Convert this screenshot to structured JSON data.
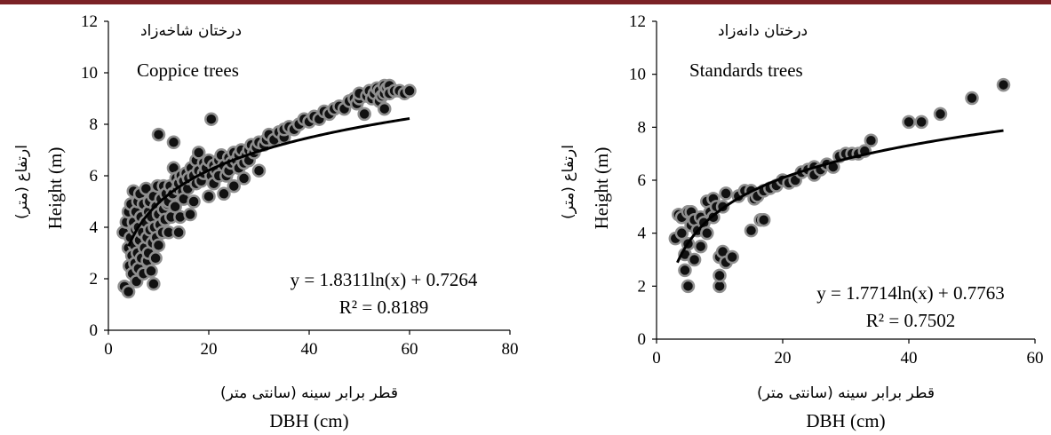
{
  "colors": {
    "top_bar": "#7b2226",
    "marker_fill": "#111111",
    "marker_edge": "#8f8f8f",
    "trend_line": "#000000"
  },
  "chart_data": [
    {
      "type": "scatter",
      "label_fa": "درختان شاخه‌زاد",
      "label_en": "Coppice  trees",
      "ylabel_fa": "ارتفاع (متر)",
      "ylabel_en": "Height (m)",
      "xlabel_fa": "قطر برابر سینه (سانتی متر)",
      "xlabel_en": "DBH (cm)",
      "xlim": [
        0,
        80
      ],
      "ylim": [
        0,
        12
      ],
      "xticks": [
        "0",
        "20",
        "40",
        "60",
        "80"
      ],
      "yticks": [
        "0",
        "2",
        "4",
        "6",
        "8",
        "10",
        "12"
      ],
      "trend": {
        "type": "logarithmic",
        "a": 1.8311,
        "b": 0.7264,
        "x_range": [
          4,
          60
        ]
      },
      "equation": "y = 1.8311ln(x) + 0.7264",
      "r2": "R² = 0.8189",
      "points": [
        [
          3,
          3.8
        ],
        [
          3.2,
          1.7
        ],
        [
          3.6,
          4.2
        ],
        [
          4,
          1.5
        ],
        [
          4,
          3.2
        ],
        [
          4,
          4.6
        ],
        [
          4.2,
          2.5
        ],
        [
          4.4,
          3.6
        ],
        [
          4.5,
          4.9
        ],
        [
          4.7,
          2.9
        ],
        [
          4.8,
          2.2
        ],
        [
          5,
          4.2
        ],
        [
          5,
          5.4
        ],
        [
          5.2,
          3.3
        ],
        [
          5.3,
          2.6
        ],
        [
          5.4,
          3.9
        ],
        [
          5.5,
          4.6
        ],
        [
          5.6,
          1.9
        ],
        [
          5.8,
          3.0
        ],
        [
          5.9,
          5.0
        ],
        [
          6,
          4.0
        ],
        [
          6,
          2.4
        ],
        [
          6.2,
          3.5
        ],
        [
          6.3,
          5.3
        ],
        [
          6.5,
          4.4
        ],
        [
          6.6,
          2.8
        ],
        [
          6.8,
          3.8
        ],
        [
          7,
          4.9
        ],
        [
          7,
          2.2
        ],
        [
          7.2,
          3.2
        ],
        [
          7.4,
          4.2
        ],
        [
          7.5,
          5.5
        ],
        [
          7.7,
          3.6
        ],
        [
          7.8,
          2.7
        ],
        [
          8,
          4.6
        ],
        [
          8,
          3.0
        ],
        [
          8.2,
          5.0
        ],
        [
          8.3,
          3.9
        ],
        [
          8.5,
          2.3
        ],
        [
          8.6,
          4.4
        ],
        [
          8.8,
          3.4
        ],
        [
          9,
          5.2
        ],
        [
          9,
          1.8
        ],
        [
          9.2,
          4.0
        ],
        [
          9.4,
          2.8
        ],
        [
          9.5,
          4.8
        ],
        [
          9.6,
          3.6
        ],
        [
          9.8,
          5.6
        ],
        [
          10,
          7.6
        ],
        [
          10,
          3.3
        ],
        [
          10,
          4.5
        ],
        [
          10.3,
          4.1
        ],
        [
          10.5,
          5.1
        ],
        [
          10.8,
          3.8
        ],
        [
          11,
          4.7
        ],
        [
          11,
          5.6
        ],
        [
          11.3,
          4.3
        ],
        [
          11.5,
          5.3
        ],
        [
          11.8,
          4.9
        ],
        [
          12,
          5.0
        ],
        [
          12,
          3.8
        ],
        [
          12.3,
          5.6
        ],
        [
          12.5,
          4.4
        ],
        [
          12.8,
          5.3
        ],
        [
          13,
          6.3
        ],
        [
          13,
          7.3
        ],
        [
          13.3,
          4.8
        ],
        [
          13.5,
          5.9
        ],
        [
          13.8,
          5.5
        ],
        [
          14,
          3.8
        ],
        [
          14,
          5.7
        ],
        [
          14.3,
          4.4
        ],
        [
          14.5,
          6.0
        ],
        [
          14.8,
          5.4
        ],
        [
          15,
          5.8
        ],
        [
          15,
          5.1
        ],
        [
          15.5,
          6.1
        ],
        [
          15.8,
          5.5
        ],
        [
          16,
          5.9
        ],
        [
          16.3,
          4.5
        ],
        [
          16.5,
          6.3
        ],
        [
          17,
          5.0
        ],
        [
          17,
          6.0
        ],
        [
          17.5,
          6.6
        ],
        [
          17.5,
          5.7
        ],
        [
          18,
          6.9
        ],
        [
          18,
          6.2
        ],
        [
          18.5,
          5.8
        ],
        [
          19,
          6.5
        ],
        [
          19,
          6.1
        ],
        [
          19.5,
          6.3
        ],
        [
          20,
          5.2
        ],
        [
          20,
          6.6
        ],
        [
          20.5,
          6.0
        ],
        [
          20.5,
          8.2
        ],
        [
          21,
          6.4
        ],
        [
          21,
          5.7
        ],
        [
          21.5,
          6.2
        ],
        [
          22,
          6.6
        ],
        [
          22,
          6.0
        ],
        [
          22.5,
          6.8
        ],
        [
          23,
          5.3
        ],
        [
          23,
          6.4
        ],
        [
          23.5,
          6.0
        ],
        [
          24,
          6.7
        ],
        [
          24,
          6.2
        ],
        [
          24.5,
          6.5
        ],
        [
          25,
          6.9
        ],
        [
          25,
          5.6
        ],
        [
          25.5,
          6.6
        ],
        [
          26,
          6.3
        ],
        [
          26,
          6.8
        ],
        [
          26.5,
          7.0
        ],
        [
          27,
          6.5
        ],
        [
          27,
          5.9
        ],
        [
          27.5,
          6.8
        ],
        [
          28,
          7.0
        ],
        [
          28,
          6.6
        ],
        [
          28.5,
          7.2
        ],
        [
          29,
          6.9
        ],
        [
          29.5,
          7.1
        ],
        [
          30,
          7.3
        ],
        [
          30,
          6.2
        ],
        [
          31,
          7.2
        ],
        [
          31.5,
          7.4
        ],
        [
          32,
          7.6
        ],
        [
          33,
          7.4
        ],
        [
          34,
          7.7
        ],
        [
          35,
          7.5
        ],
        [
          35,
          7.8
        ],
        [
          36,
          7.9
        ],
        [
          37,
          7.8
        ],
        [
          38,
          8.0
        ],
        [
          39,
          8.2
        ],
        [
          40,
          8.1
        ],
        [
          41,
          8.3
        ],
        [
          42,
          8.2
        ],
        [
          43,
          8.5
        ],
        [
          44,
          8.4
        ],
        [
          45,
          8.6
        ],
        [
          46,
          8.7
        ],
        [
          47,
          8.6
        ],
        [
          48,
          8.9
        ],
        [
          49,
          9.0
        ],
        [
          49.5,
          8.8
        ],
        [
          50,
          9.0
        ],
        [
          50,
          9.2
        ],
        [
          51,
          8.4
        ],
        [
          51.5,
          9.1
        ],
        [
          52,
          9.3
        ],
        [
          52.5,
          9.0
        ],
        [
          53,
          9.2
        ],
        [
          53.5,
          9.4
        ],
        [
          54,
          8.9
        ],
        [
          54,
          9.3
        ],
        [
          54.5,
          9.1
        ],
        [
          55,
          9.5
        ],
        [
          55,
          9.2
        ],
        [
          55,
          8.6
        ],
        [
          55.5,
          9.4
        ],
        [
          56,
          9.5
        ],
        [
          56,
          9.2
        ],
        [
          57,
          9.3
        ],
        [
          58,
          9.3
        ],
        [
          59,
          9.2
        ],
        [
          60,
          9.3
        ]
      ]
    },
    {
      "type": "scatter",
      "label_fa": "درختان دانه‌زاد",
      "label_en": "Standards trees",
      "ylabel_fa": "ارتفاع (متر)",
      "ylabel_en": "Height (m)",
      "xlabel_fa": "قطر برابر سینه (سانتی متر)",
      "xlabel_en": "DBH (cm)",
      "xlim": [
        0,
        60
      ],
      "ylim": [
        0,
        12
      ],
      "xticks": [
        "0",
        "20",
        "40",
        "60"
      ],
      "yticks": [
        "0",
        "2",
        "4",
        "6",
        "8",
        "10",
        "12"
      ],
      "trend": {
        "type": "logarithmic",
        "a": 1.7714,
        "b": 0.7763,
        "x_range": [
          3.3,
          55
        ]
      },
      "equation": "y = 1.7714ln(x) + 0.7763",
      "r2": "R² = 0.7502",
      "points": [
        [
          3,
          3.8
        ],
        [
          3.5,
          4.7
        ],
        [
          4,
          4.0
        ],
        [
          4,
          4.6
        ],
        [
          4.5,
          3.2
        ],
        [
          4.5,
          2.6
        ],
        [
          5,
          2.0
        ],
        [
          5,
          4.8
        ],
        [
          5,
          3.6
        ],
        [
          5.5,
          4.3
        ],
        [
          5.5,
          4.8
        ],
        [
          6,
          4.5
        ],
        [
          6,
          3.0
        ],
        [
          6.5,
          4.1
        ],
        [
          7,
          4.6
        ],
        [
          7,
          3.5
        ],
        [
          7.5,
          4.4
        ],
        [
          8,
          5.2
        ],
        [
          8,
          4.0
        ],
        [
          8.5,
          4.8
        ],
        [
          9,
          4.6
        ],
        [
          9,
          5.3
        ],
        [
          9.5,
          5.0
        ],
        [
          10,
          2.0
        ],
        [
          10,
          3.1
        ],
        [
          10,
          2.4
        ],
        [
          10.5,
          3.3
        ],
        [
          10.5,
          5.0
        ],
        [
          11,
          2.9
        ],
        [
          11,
          5.5
        ],
        [
          12,
          3.1
        ],
        [
          13,
          5.4
        ],
        [
          14,
          5.6
        ],
        [
          15,
          5.6
        ],
        [
          15,
          4.1
        ],
        [
          15.5,
          5.3
        ],
        [
          16,
          5.4
        ],
        [
          16.5,
          4.5
        ],
        [
          17,
          4.5
        ],
        [
          17,
          5.6
        ],
        [
          18,
          5.7
        ],
        [
          19,
          5.8
        ],
        [
          20,
          6.0
        ],
        [
          21,
          5.9
        ],
        [
          22,
          6.0
        ],
        [
          23,
          6.3
        ],
        [
          24,
          6.4
        ],
        [
          25,
          6.5
        ],
        [
          25,
          6.2
        ],
        [
          26,
          6.4
        ],
        [
          27,
          6.6
        ],
        [
          28,
          6.5
        ],
        [
          29,
          6.9
        ],
        [
          30,
          7.0
        ],
        [
          31,
          7.0
        ],
        [
          32,
          7.0
        ],
        [
          33,
          7.1
        ],
        [
          34,
          7.5
        ],
        [
          40,
          8.2
        ],
        [
          42,
          8.2
        ],
        [
          45,
          8.5
        ],
        [
          50,
          9.1
        ],
        [
          55,
          9.6
        ]
      ]
    }
  ]
}
